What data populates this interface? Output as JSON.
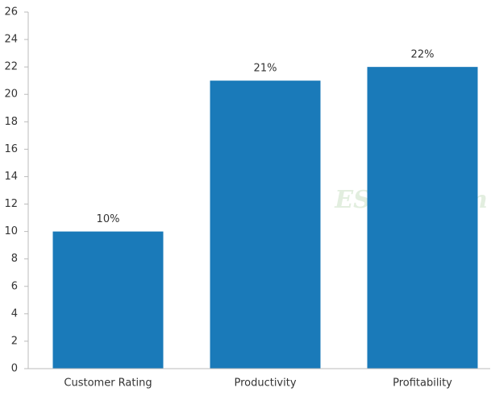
{
  "chart_data": {
    "type": "bar",
    "categories": [
      "Customer Rating",
      "Productivity",
      "Profitability"
    ],
    "values": [
      10,
      21,
      22
    ],
    "value_labels": [
      "10%",
      "21%",
      "22%"
    ],
    "color": "#1a7ab9",
    "ylim": [
      0,
      26
    ],
    "yticks": [
      0,
      2,
      4,
      6,
      8,
      10,
      12,
      14,
      16,
      18,
      20,
      22,
      24,
      26
    ],
    "grid": false,
    "watermark": "ESGzh.com"
  }
}
